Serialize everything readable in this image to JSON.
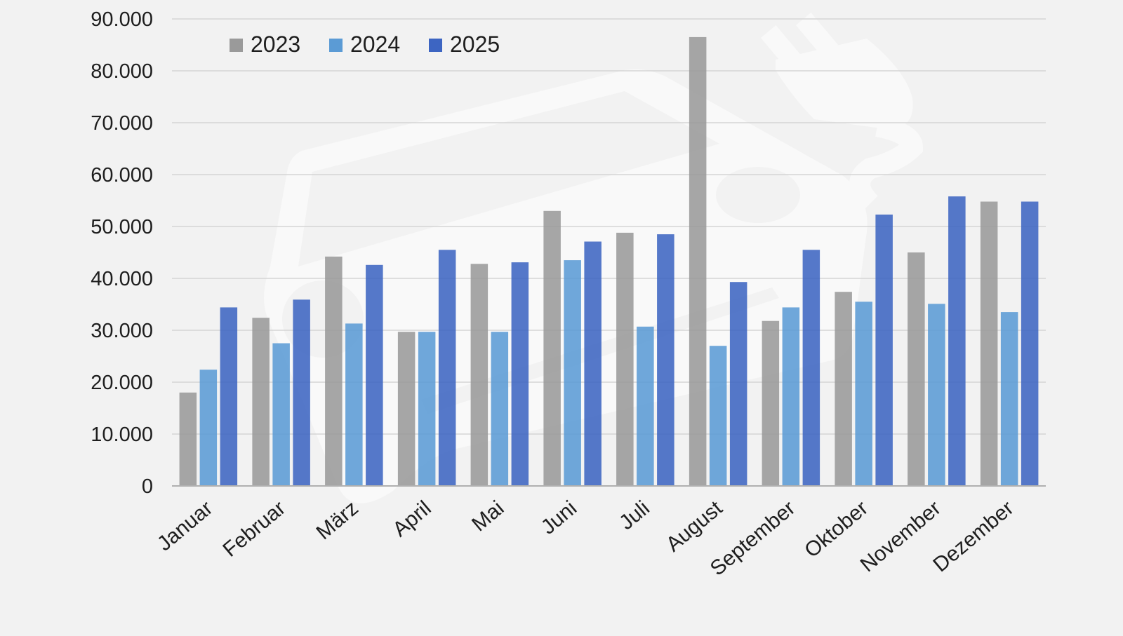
{
  "chart_data": {
    "type": "bar",
    "categories": [
      "Januar",
      "Februar",
      "März",
      "April",
      "Mai",
      "Juni",
      "Juli",
      "August",
      "September",
      "Oktober",
      "November",
      "Dezember"
    ],
    "series": [
      {
        "name": "2023",
        "color": "#9a9a9a",
        "values": [
          18000,
          32400,
          44200,
          29700,
          42800,
          53000,
          48800,
          86500,
          31800,
          37400,
          45000,
          54800
        ]
      },
      {
        "name": "2024",
        "color": "#5b9bd5",
        "values": [
          22400,
          27500,
          31300,
          29700,
          29700,
          43500,
          30700,
          27000,
          34400,
          35500,
          35100,
          33500
        ]
      },
      {
        "name": "2025",
        "color": "#3d65c2",
        "values": [
          34400,
          35900,
          42600,
          45500,
          43100,
          47100,
          48500,
          39300,
          45500,
          52300,
          55800,
          54800
        ]
      }
    ],
    "y_ticks": [
      "0",
      "10.000",
      "20.000",
      "30.000",
      "40.000",
      "50.000",
      "60.000",
      "70.000",
      "80.000",
      "90.000"
    ],
    "ylim": [
      0,
      90000
    ],
    "title": "",
    "xlabel": "",
    "ylabel": "",
    "grid": true,
    "legend_position": "top-left",
    "background_watermark": "electric-car-plug-icon"
  }
}
